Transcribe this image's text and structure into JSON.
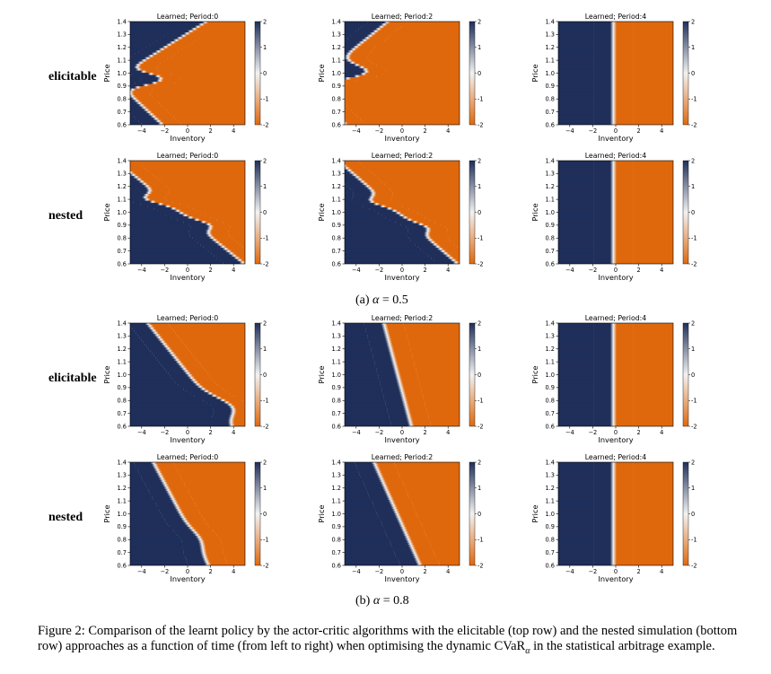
{
  "row_labels": [
    "elicitable",
    "nested",
    "elicitable",
    "nested"
  ],
  "subfigure_captions": [
    {
      "prefix": "(a) ",
      "symbol": "α",
      "value": " = 0.5"
    },
    {
      "prefix": "(b) ",
      "symbol": "α",
      "value": " = 0.8"
    }
  ],
  "caption": {
    "text_before": "Figure 2: Comparison of the learnt policy by the actor-critic algorithms with the elicitable (top row) and the nested simulation (bottom row) approaches as a function of time (from left to right) when optimising the dynamic CVaR",
    "subscript": "α",
    "text_after": " in the statistical arbitrage example."
  },
  "chart_data": {
    "type": "heatmap",
    "xlabel": "Inventory",
    "ylabel": "Price",
    "xlim": [
      -5,
      5
    ],
    "ylim": [
      0.6,
      1.4
    ],
    "x_ticks": [
      "−4",
      "−2",
      "0",
      "2",
      "4"
    ],
    "y_ticks": [
      "0.6",
      "0.7",
      "0.8",
      "0.9",
      "1.0",
      "1.1",
      "1.2",
      "1.3",
      "1.4"
    ],
    "colorbar_ticks": [
      "2",
      "1",
      "0",
      "-1",
      "-2"
    ],
    "colorbar_range": [
      -2,
      2
    ],
    "colors": {
      "high": "#1f2f5a",
      "mid": "#f2f2f2",
      "low": "#e0680c"
    },
    "panels": [
      {
        "title": "Learned; Period:0",
        "alpha": 0.5,
        "approach": "elicitable",
        "period": 0
      },
      {
        "title": "Learned; Period:2",
        "alpha": 0.5,
        "approach": "elicitable",
        "period": 2
      },
      {
        "title": "Learned; Period:4",
        "alpha": 0.5,
        "approach": "elicitable",
        "period": 4
      },
      {
        "title": "Learned; Period:0",
        "alpha": 0.5,
        "approach": "nested",
        "period": 0
      },
      {
        "title": "Learned; Period:2",
        "alpha": 0.5,
        "approach": "nested",
        "period": 2
      },
      {
        "title": "Learned; Period:4",
        "alpha": 0.5,
        "approach": "nested",
        "period": 4
      },
      {
        "title": "Learned; Period:0",
        "alpha": 0.8,
        "approach": "elicitable",
        "period": 0
      },
      {
        "title": "Learned; Period:2",
        "alpha": 0.8,
        "approach": "elicitable",
        "period": 2
      },
      {
        "title": "Learned; Period:4",
        "alpha": 0.8,
        "approach": "elicitable",
        "period": 4
      },
      {
        "title": "Learned; Period:0",
        "alpha": 0.8,
        "approach": "nested",
        "period": 0
      },
      {
        "title": "Learned; Period:2",
        "alpha": 0.8,
        "approach": "nested",
        "period": 2
      },
      {
        "title": "Learned; Period:4",
        "alpha": 0.8,
        "approach": "nested",
        "period": 4
      }
    ]
  }
}
